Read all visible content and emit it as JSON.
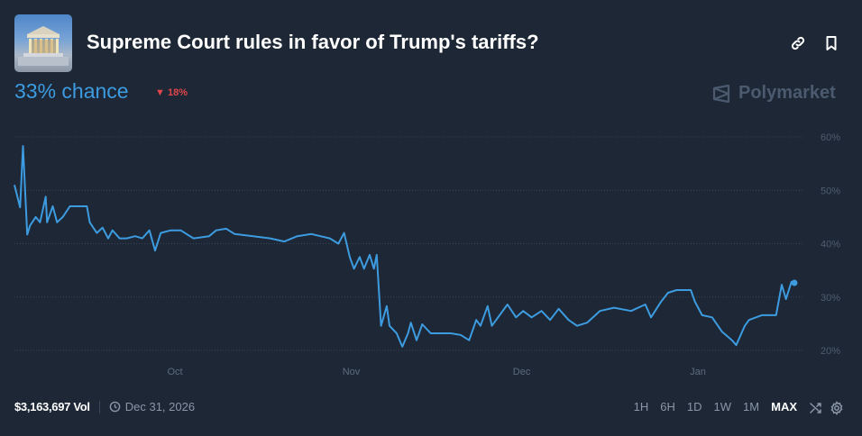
{
  "header": {
    "title": "Supreme Court rules in favor of Trump's tariffs?",
    "thumbnail_icon": "supreme-court-building-image",
    "chance": "33% chance",
    "change": "18%",
    "change_direction": "down",
    "brand": "Polymarket",
    "actions": [
      "link-icon",
      "bookmark-icon"
    ]
  },
  "footer": {
    "volume": "$3,163,697 Vol",
    "end_date": "Dec 31, 2026",
    "ranges": [
      "1H",
      "6H",
      "1D",
      "1W",
      "1M",
      "MAX"
    ],
    "active_range": "MAX"
  },
  "colors": {
    "background": "#1d2735",
    "line": "#3d9be0",
    "down": "#e1464b",
    "text_muted": "#8a96a6"
  },
  "chart_data": {
    "type": "line",
    "title": "",
    "xlabel": "",
    "ylabel": "",
    "ylim": [
      20,
      60
    ],
    "xlim": [
      "2025-09-02T18:00",
      "2026-01-17T12:00"
    ],
    "y_ticks": [
      "60%",
      "50%",
      "40%",
      "30%",
      "20%"
    ],
    "y_tick_values": [
      60,
      50,
      40,
      30,
      20
    ],
    "y_axis_position": "right",
    "x_ticks": [
      "Oct",
      "Nov",
      "Dec",
      "Jan"
    ],
    "x_tick_values": [
      "2025-10-01",
      "2025-11-01",
      "2025-12-01",
      "2026-01-01"
    ],
    "grid": "horizontal dotted",
    "legend": "none",
    "end_marker": true,
    "series": [
      {
        "x": [
          "2025-09-02T18:00",
          "2025-09-03T18:00",
          "2025-09-04T06:00",
          "2025-09-05T00:00",
          "2025-09-05T12:00",
          "2025-09-06T12:00",
          "2025-09-07T06:00",
          "2025-09-08T06:00",
          "2025-09-08T12:00",
          "2025-09-09T12:00",
          "2025-09-10T06:00",
          "2025-09-11T06:00",
          "2025-09-12T12:00",
          "2025-09-15T12:00",
          "2025-09-16T00:00",
          "2025-09-17T06:00",
          "2025-09-18T06:00",
          "2025-09-19T06:00",
          "2025-09-20T00:00",
          "2025-09-21T06:00",
          "2025-09-22T12:00",
          "2025-09-24T00:00",
          "2025-09-25T06:00",
          "2025-09-26T12:00",
          "2025-09-27T12:00",
          "2025-09-28T12:00",
          "2025-09-30T06:00",
          "2025-10-02T00:00",
          "2025-10-04T06:00",
          "2025-10-07T00:00",
          "2025-10-08T06:00",
          "2025-10-10T00:00",
          "2025-10-11T12:00",
          "2025-10-14T18:00",
          "2025-10-17T18:00",
          "2025-10-20T06:00",
          "2025-10-22T12:00",
          "2025-10-25T00:00",
          "2025-10-28T06:00",
          "2025-10-29T18:00",
          "2025-10-30T18:00",
          "2025-10-31T18:00",
          "2025-11-01T12:00",
          "2025-11-02T12:00",
          "2025-11-03T06:00",
          "2025-11-04T06:00",
          "2025-11-05T00:00",
          "2025-11-05T12:00",
          "2025-11-06T06:00",
          "2025-11-07T06:00",
          "2025-11-07T18:00",
          "2025-11-09T00:00",
          "2025-11-10T00:00",
          "2025-11-11T00:00",
          "2025-11-11T12:00",
          "2025-11-12T12:00",
          "2025-11-13T12:00",
          "2025-11-15T00:00",
          "2025-11-17T00:00",
          "2025-11-18T12:00",
          "2025-11-20T06:00",
          "2025-11-21T18:00",
          "2025-11-23T00:00",
          "2025-11-23T18:00",
          "2025-11-25T00:00",
          "2025-11-25T18:00",
          "2025-11-28T12:00",
          "2025-11-30T00:00",
          "2025-12-01T06:00",
          "2025-12-02T18:00",
          "2025-12-04T12:00",
          "2025-12-06T00:00",
          "2025-12-07T12:00",
          "2025-12-09T06:00",
          "2025-12-10T18:00",
          "2025-12-12T12:00",
          "2025-12-14T18:00",
          "2025-12-17T06:00",
          "2025-12-20T06:00",
          "2025-12-22T18:00",
          "2025-12-23T18:00",
          "2025-12-25T12:00",
          "2025-12-26T18:00",
          "2025-12-28T06:00",
          "2025-12-30T18:00",
          "2025-12-31T12:00",
          "2026-01-01T18:00",
          "2026-01-03T12:00",
          "2026-01-05T06:00",
          "2026-01-07T00:00",
          "2026-01-07T18:00",
          "2026-01-09T06:00",
          "2026-01-10T00:00",
          "2026-01-12T06:00",
          "2026-01-14T18:00",
          "2026-01-15T18:00",
          "2026-01-16T12:00",
          "2026-01-17T12:00"
        ],
        "y": [
          51,
          46.8,
          58.3,
          41.7,
          43.4,
          45,
          44,
          48.8,
          44,
          47,
          44,
          45,
          47,
          47,
          44,
          42,
          43,
          41,
          42.5,
          41,
          41,
          41.4,
          41,
          42.5,
          38.7,
          42,
          42.5,
          42.5,
          41,
          41.4,
          42.5,
          42.8,
          41.8,
          41.4,
          41,
          40.4,
          41.4,
          41.8,
          41,
          40,
          42,
          37.5,
          35.3,
          37.5,
          35.3,
          37.9,
          35.3,
          37.9,
          24.6,
          28.3,
          24.6,
          23.2,
          20.7,
          23.2,
          25.2,
          21.9,
          24.9,
          23.2,
          23.2,
          23.2,
          22.9,
          21.9,
          25.7,
          24.6,
          28.3,
          24.6,
          28.6,
          26.2,
          27.4,
          26.2,
          27.4,
          25.7,
          27.8,
          25.7,
          24.6,
          25.2,
          27.4,
          28,
          27.4,
          28.6,
          26.2,
          29.1,
          30.8,
          31.3,
          31.3,
          29.1,
          26.6,
          26.2,
          23.5,
          21.9,
          21,
          24.6,
          25.7,
          26.6,
          26.6,
          32.3,
          29.6,
          33
        ]
      }
    ]
  }
}
